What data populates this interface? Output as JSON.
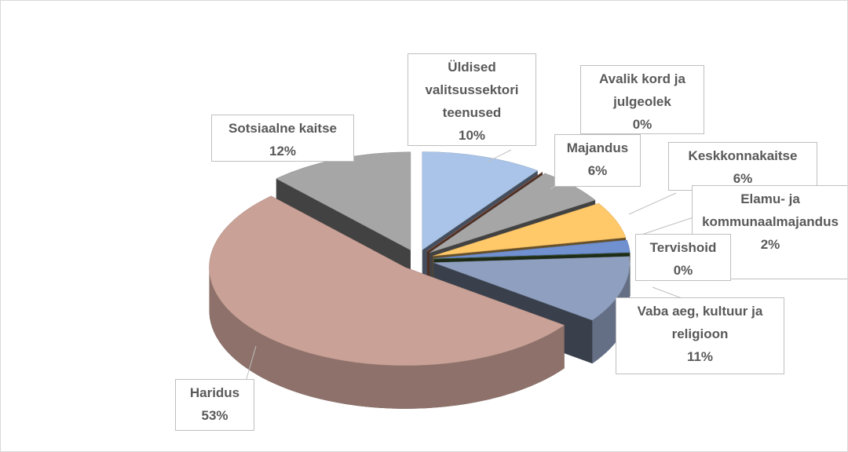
{
  "chart_data": {
    "type": "pie3d",
    "categories": [
      "Üldised valitsussektori teenused",
      "Avalik kord ja julgeolek",
      "Majandus",
      "Keskkonnakaitse",
      "Elamu- ja kommunaalmajandus",
      "Tervishoid",
      "Vaba aeg, kultuur ja religioon",
      "Haridus",
      "Sotsiaalne kaitse"
    ],
    "values": [
      10,
      0,
      6,
      6,
      2,
      0,
      11,
      53,
      12
    ],
    "value_labels": [
      "10%",
      "0%",
      "6%",
      "6%",
      "2%",
      "0%",
      "11%",
      "53%",
      "12%"
    ],
    "colors": [
      "#a9c4e8",
      "#c0765a",
      "#a6a6a6",
      "#ffc869",
      "#7090d0",
      "#4b6b3a",
      "#8f9fbf",
      "#c9a197",
      "#a6a6a6"
    ]
  }
}
